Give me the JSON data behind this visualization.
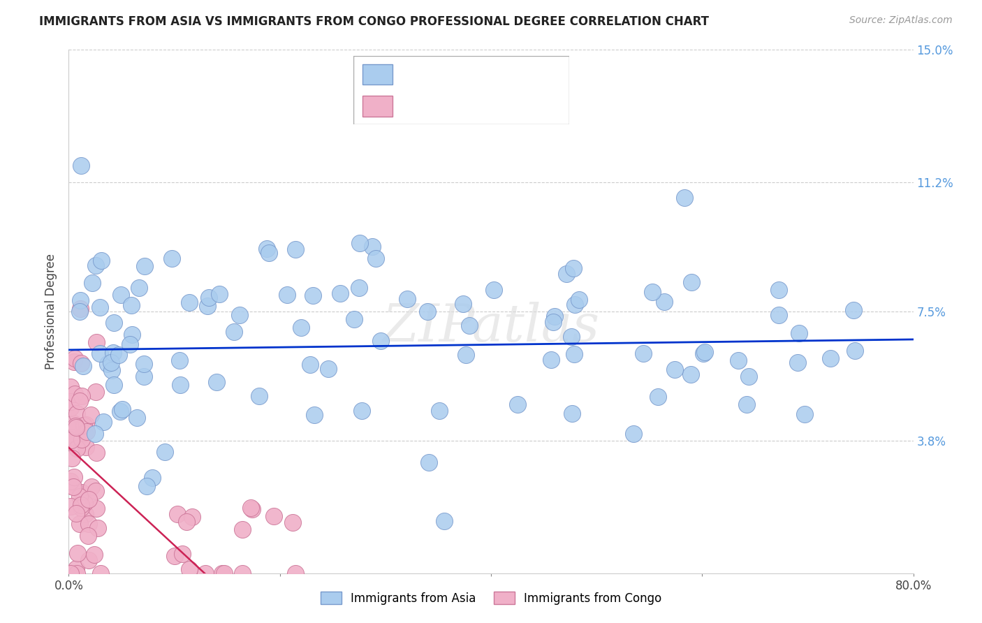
{
  "title": "IMMIGRANTS FROM ASIA VS IMMIGRANTS FROM CONGO PROFESSIONAL DEGREE CORRELATION CHART",
  "source": "Source: ZipAtlas.com",
  "ylabel": "Professional Degree",
  "xlim": [
    0.0,
    0.8
  ],
  "ylim": [
    0.0,
    0.15
  ],
  "asia_color": "#aaccee",
  "asia_edge_color": "#7799cc",
  "congo_color": "#f0b0c8",
  "congo_edge_color": "#cc7799",
  "asia_trend_color": "#0033cc",
  "congo_trend_color": "#cc2255",
  "watermark": "ZIPatlas",
  "ytick_pos": [
    0.0,
    0.038,
    0.075,
    0.112,
    0.15
  ],
  "ytick_labels": [
    "",
    "3.8%",
    "7.5%",
    "11.2%",
    "15.0%"
  ]
}
